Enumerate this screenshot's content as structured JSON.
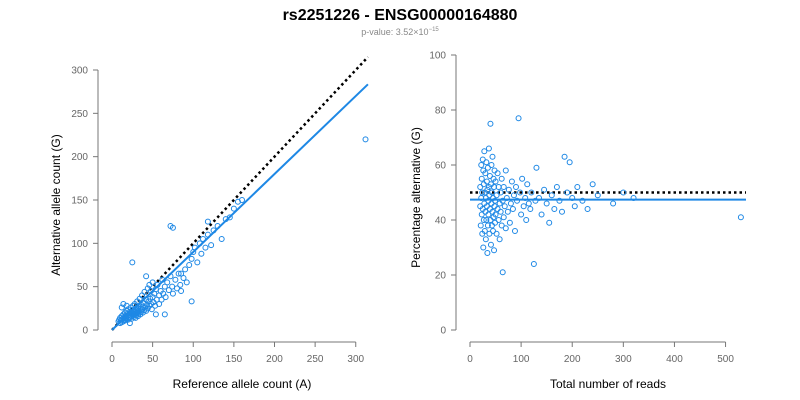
{
  "figure": {
    "title": "rs2251226 - ENSG00000164880",
    "pvalue_prefix": "p-value: 3.52×10",
    "pvalue_exponent": "−15"
  },
  "colors": {
    "points": "#1e88e5",
    "fit_line": "#1e88e5",
    "reference_line": "#000000"
  },
  "chart_data": [
    {
      "type": "scatter",
      "title": "",
      "xlabel": "Reference allele count (A)",
      "ylabel": "Alternative allele count (G)",
      "xlim": [
        0,
        320
      ],
      "ylim": [
        0,
        300
      ],
      "xticks": [
        0,
        50,
        100,
        150,
        200,
        250,
        300
      ],
      "yticks": [
        0,
        50,
        100,
        150,
        200,
        250,
        300
      ],
      "grid": false,
      "reference_line": {
        "style": "dotted",
        "slope": 1,
        "intercept": 0,
        "x": [
          0,
          315
        ]
      },
      "fit_line": {
        "style": "solid",
        "slope": 0.9,
        "intercept": 0,
        "x": [
          0,
          315
        ]
      },
      "points": [
        [
          8,
          10
        ],
        [
          9,
          12
        ],
        [
          10,
          8
        ],
        [
          10,
          14
        ],
        [
          11,
          11
        ],
        [
          12,
          9
        ],
        [
          12,
          16
        ],
        [
          13,
          13
        ],
        [
          14,
          10
        ],
        [
          14,
          18
        ],
        [
          15,
          12
        ],
        [
          15,
          15
        ],
        [
          16,
          20
        ],
        [
          16,
          11
        ],
        [
          17,
          14
        ],
        [
          17,
          17
        ],
        [
          18,
          13
        ],
        [
          18,
          22
        ],
        [
          19,
          16
        ],
        [
          19,
          19
        ],
        [
          20,
          12
        ],
        [
          20,
          24
        ],
        [
          21,
          15
        ],
        [
          21,
          18
        ],
        [
          22,
          21
        ],
        [
          22,
          14
        ],
        [
          23,
          17
        ],
        [
          23,
          26
        ],
        [
          24,
          13
        ],
        [
          24,
          20
        ],
        [
          25,
          16
        ],
        [
          25,
          23
        ],
        [
          26,
          19
        ],
        [
          26,
          28
        ],
        [
          27,
          15
        ],
        [
          27,
          22
        ],
        [
          28,
          18
        ],
        [
          28,
          30
        ],
        [
          29,
          21
        ],
        [
          29,
          14
        ],
        [
          30,
          25
        ],
        [
          30,
          17
        ],
        [
          31,
          20
        ],
        [
          31,
          33
        ],
        [
          32,
          23
        ],
        [
          32,
          16
        ],
        [
          33,
          27
        ],
        [
          33,
          19
        ],
        [
          34,
          22
        ],
        [
          34,
          36
        ],
        [
          35,
          25
        ],
        [
          35,
          18
        ],
        [
          36,
          29
        ],
        [
          36,
          21
        ],
        [
          37,
          24
        ],
        [
          37,
          40
        ],
        [
          38,
          27
        ],
        [
          38,
          20
        ],
        [
          39,
          31
        ],
        [
          40,
          23
        ],
        [
          40,
          44
        ],
        [
          41,
          26
        ],
        [
          42,
          35
        ],
        [
          42,
          22
        ],
        [
          43,
          29
        ],
        [
          44,
          25
        ],
        [
          44,
          48
        ],
        [
          45,
          33
        ],
        [
          46,
          28
        ],
        [
          46,
          52
        ],
        [
          47,
          36
        ],
        [
          48,
          30
        ],
        [
          48,
          45
        ],
        [
          49,
          24
        ],
        [
          50,
          38
        ],
        [
          50,
          55
        ],
        [
          51,
          32
        ],
        [
          52,
          42
        ],
        [
          53,
          28
        ],
        [
          54,
          47
        ],
        [
          55,
          35
        ],
        [
          56,
          52
        ],
        [
          58,
          30
        ],
        [
          58,
          40
        ],
        [
          60,
          45
        ],
        [
          61,
          35
        ],
        [
          62,
          58
        ],
        [
          63,
          42
        ],
        [
          65,
          50
        ],
        [
          66,
          38
        ],
        [
          68,
          55
        ],
        [
          70,
          46
        ],
        [
          72,
          62
        ],
        [
          74,
          50
        ],
        [
          75,
          42
        ],
        [
          78,
          58
        ],
        [
          80,
          48
        ],
        [
          82,
          65
        ],
        [
          84,
          52
        ],
        [
          85,
          45
        ],
        [
          88,
          60
        ],
        [
          90,
          70
        ],
        [
          92,
          55
        ],
        [
          95,
          75
        ],
        [
          98,
          82
        ],
        [
          100,
          90
        ],
        [
          102,
          95
        ],
        [
          105,
          78
        ],
        [
          108,
          100
        ],
        [
          110,
          88
        ],
        [
          112,
          105
        ],
        [
          115,
          95
        ],
        [
          118,
          110
        ],
        [
          122,
          98
        ],
        [
          125,
          115
        ],
        [
          130,
          120
        ],
        [
          135,
          105
        ],
        [
          140,
          128
        ],
        [
          145,
          130
        ],
        [
          150,
          140
        ],
        [
          155,
          148
        ],
        [
          160,
          150
        ],
        [
          98,
          33
        ],
        [
          72,
          120
        ],
        [
          75,
          118
        ],
        [
          65,
          18
        ],
        [
          18,
          28
        ],
        [
          22,
          8
        ],
        [
          12,
          26
        ],
        [
          14,
          30
        ],
        [
          25,
          78
        ],
        [
          42,
          62
        ],
        [
          54,
          18
        ],
        [
          85,
          65
        ],
        [
          118,
          125
        ],
        [
          312,
          220
        ]
      ]
    },
    {
      "type": "scatter",
      "title": "",
      "xlabel": "Total number of reads",
      "ylabel": "Percentage alternative (G)",
      "xlim": [
        0,
        540
      ],
      "ylim": [
        0,
        100
      ],
      "xticks": [
        0,
        100,
        200,
        300,
        400,
        500
      ],
      "yticks": [
        0,
        20,
        40,
        60,
        80,
        100
      ],
      "grid": false,
      "reference_line": {
        "style": "dotted",
        "y": 50,
        "x": [
          0,
          540
        ]
      },
      "fit_line": {
        "style": "solid",
        "y": 47.4,
        "x": [
          0,
          540
        ]
      },
      "points": [
        [
          20,
          45
        ],
        [
          20,
          52
        ],
        [
          21,
          38
        ],
        [
          22,
          60
        ],
        [
          22,
          48
        ],
        [
          23,
          42
        ],
        [
          23,
          55
        ],
        [
          24,
          35
        ],
        [
          24,
          50
        ],
        [
          25,
          62
        ],
        [
          25,
          44
        ],
        [
          26,
          30
        ],
        [
          26,
          58
        ],
        [
          27,
          40
        ],
        [
          27,
          53
        ],
        [
          28,
          46
        ],
        [
          28,
          65
        ],
        [
          29,
          36
        ],
        [
          29,
          50
        ],
        [
          30,
          43
        ],
        [
          30,
          57
        ],
        [
          31,
          33
        ],
        [
          31,
          48
        ],
        [
          32,
          61
        ],
        [
          32,
          40
        ],
        [
          33,
          54
        ],
        [
          33,
          45
        ],
        [
          34,
          28
        ],
        [
          34,
          51
        ],
        [
          35,
          38
        ],
        [
          35,
          59
        ],
        [
          36,
          47
        ],
        [
          36,
          42
        ],
        [
          37,
          66
        ],
        [
          37,
          52
        ],
        [
          38,
          35
        ],
        [
          38,
          49
        ],
        [
          39,
          44
        ],
        [
          39,
          56
        ],
        [
          40,
          40
        ],
        [
          40,
          75
        ],
        [
          41,
          53
        ],
        [
          41,
          31
        ],
        [
          42,
          46
        ],
        [
          42,
          60
        ],
        [
          43,
          38
        ],
        [
          43,
          50
        ],
        [
          44,
          43
        ],
        [
          44,
          63
        ],
        [
          45,
          48
        ],
        [
          45,
          36
        ],
        [
          46,
          55
        ],
        [
          46,
          41
        ],
        [
          47,
          29
        ],
        [
          47,
          52
        ],
        [
          48,
          45
        ],
        [
          48,
          58
        ],
        [
          49,
          39
        ],
        [
          49,
          47
        ],
        [
          50,
          54
        ],
        [
          50,
          42
        ],
        [
          52,
          49
        ],
        [
          52,
          35
        ],
        [
          54,
          57
        ],
        [
          54,
          44
        ],
        [
          56,
          40
        ],
        [
          56,
          52
        ],
        [
          58,
          46
        ],
        [
          58,
          33
        ],
        [
          60,
          50
        ],
        [
          60,
          43
        ],
        [
          62,
          38
        ],
        [
          62,
          55
        ],
        [
          64,
          47
        ],
        [
          64,
          21
        ],
        [
          66,
          52
        ],
        [
          66,
          41
        ],
        [
          68,
          45
        ],
        [
          70,
          37
        ],
        [
          70,
          58
        ],
        [
          72,
          48
        ],
        [
          74,
          43
        ],
        [
          76,
          51
        ],
        [
          78,
          39
        ],
        [
          80,
          46
        ],
        [
          82,
          54
        ],
        [
          84,
          44
        ],
        [
          86,
          49
        ],
        [
          88,
          36
        ],
        [
          90,
          52
        ],
        [
          92,
          47
        ],
        [
          95,
          77
        ],
        [
          98,
          50
        ],
        [
          100,
          42
        ],
        [
          102,
          55
        ],
        [
          105,
          45
        ],
        [
          108,
          48
        ],
        [
          110,
          40
        ],
        [
          112,
          53
        ],
        [
          115,
          46
        ],
        [
          118,
          44
        ],
        [
          120,
          50
        ],
        [
          125,
          24
        ],
        [
          128,
          47
        ],
        [
          130,
          59
        ],
        [
          135,
          48
        ],
        [
          140,
          42
        ],
        [
          145,
          51
        ],
        [
          150,
          46
        ],
        [
          155,
          39
        ],
        [
          160,
          49
        ],
        [
          165,
          44
        ],
        [
          170,
          52
        ],
        [
          175,
          47
        ],
        [
          180,
          43
        ],
        [
          185,
          63
        ],
        [
          190,
          50
        ],
        [
          195,
          61
        ],
        [
          200,
          48
        ],
        [
          205,
          45
        ],
        [
          210,
          52
        ],
        [
          220,
          47
        ],
        [
          230,
          44
        ],
        [
          240,
          53
        ],
        [
          250,
          49
        ],
        [
          280,
          46
        ],
        [
          300,
          50
        ],
        [
          320,
          48
        ],
        [
          530,
          41
        ]
      ]
    }
  ]
}
